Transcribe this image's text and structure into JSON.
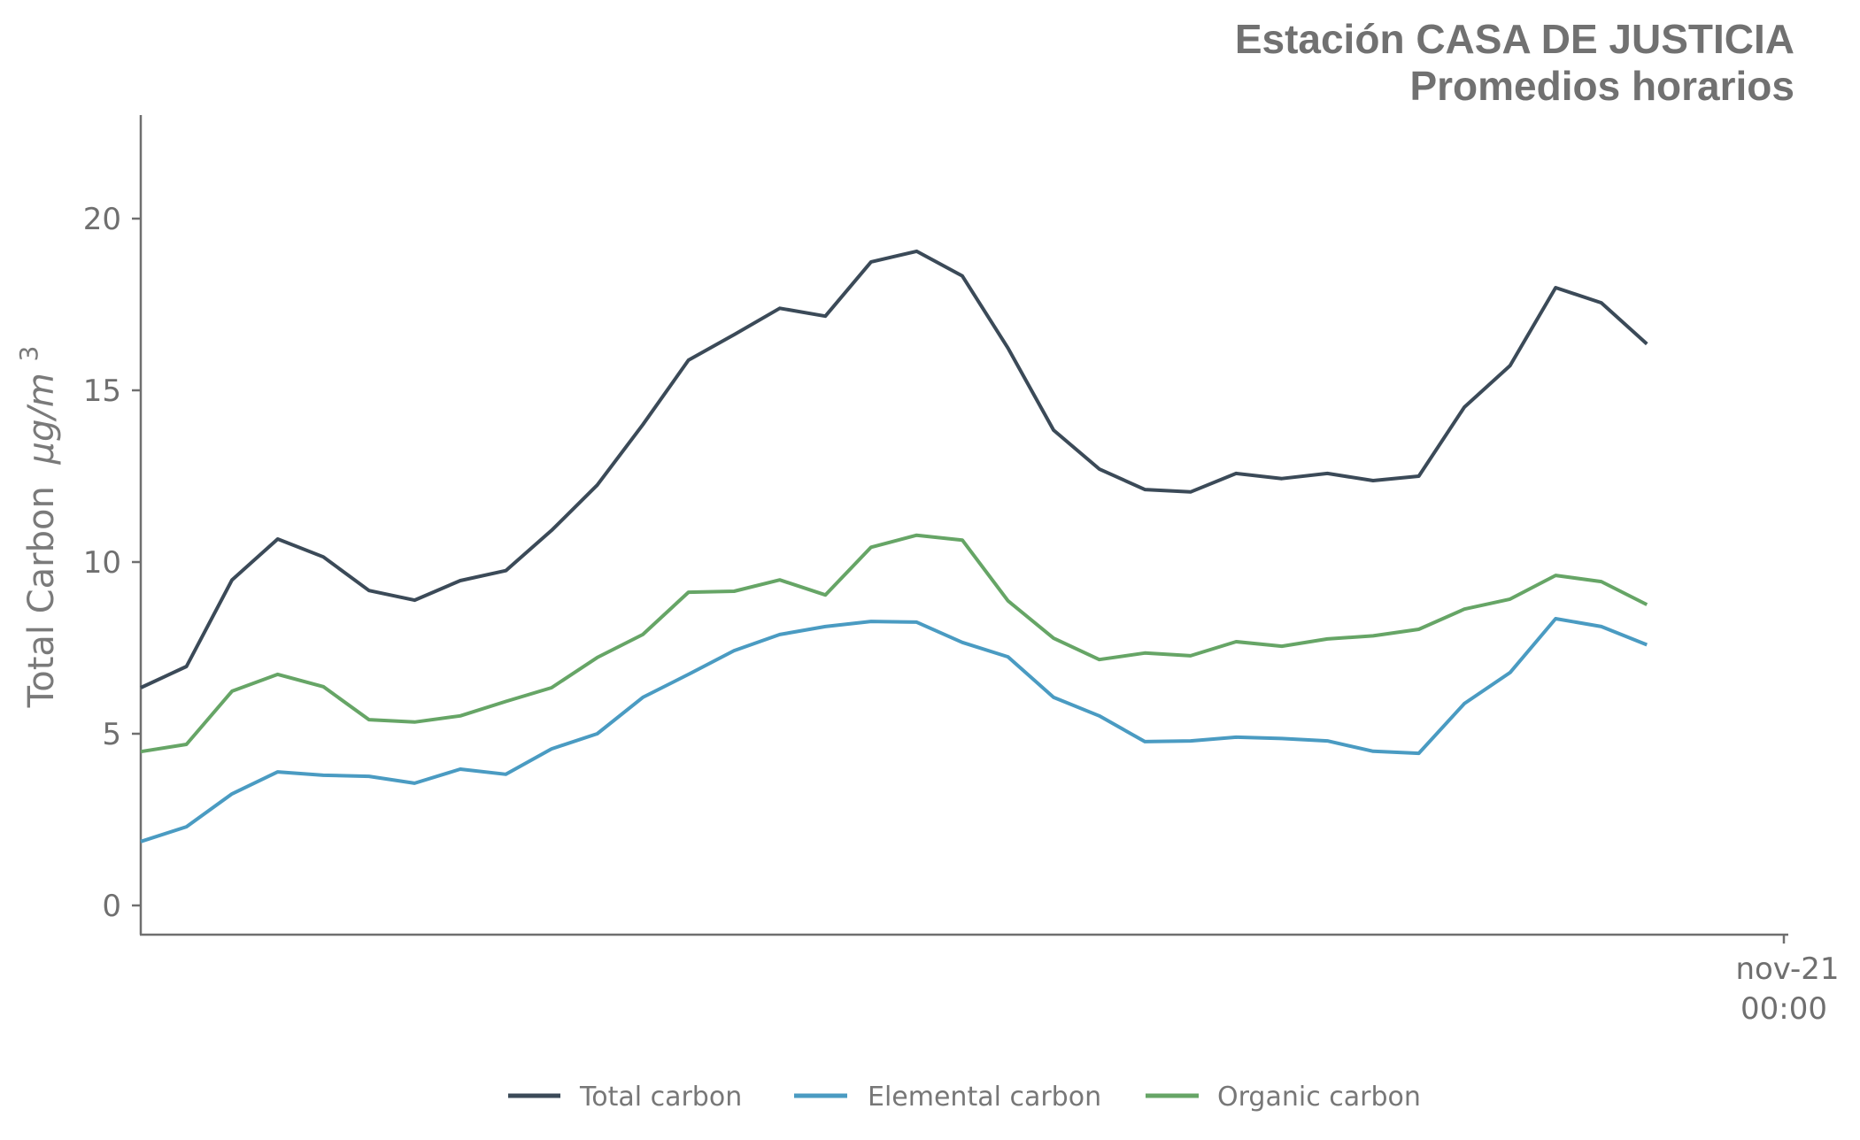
{
  "chart_data": {
    "type": "line",
    "title": "Estación CASA DE JUSTICIA",
    "subtitle": "Promedios horarios",
    "xlabel": "",
    "ylabel": "Total Carbon",
    "ylabel_unit": "μg/m",
    "ylabel_unit_sup": "3",
    "x_unit": "hours (hourly averages, 36 h before the nov-21 00:00 tick = hour 0)",
    "x": [
      0,
      1,
      2,
      3,
      4,
      5,
      6,
      7,
      8,
      9,
      10,
      11,
      12,
      13,
      14,
      15,
      16,
      17,
      18,
      19,
      20,
      21,
      22,
      23,
      24,
      25,
      26,
      27,
      28,
      29,
      30,
      31,
      32,
      33
    ],
    "xlim": [
      0,
      36
    ],
    "ylim": [
      -0.8,
      23
    ],
    "yticks": [
      0,
      5,
      10,
      15,
      20
    ],
    "ytick_labels": [
      "0",
      "5",
      "10",
      "15",
      "20"
    ],
    "xticks": [
      36
    ],
    "xtick_labels": [
      [
        "nov-21",
        "00:00"
      ]
    ],
    "grid": false,
    "legend_position": "bottom-center",
    "series": [
      {
        "name": "Total carbon",
        "color": "#3b4a58",
        "values": [
          6.34,
          6.96,
          9.48,
          10.67,
          10.15,
          9.17,
          8.89,
          9.46,
          9.75,
          10.92,
          12.24,
          14.0,
          15.88,
          16.62,
          17.39,
          17.16,
          18.74,
          19.05,
          18.33,
          16.23,
          13.84,
          12.71,
          12.11,
          12.04,
          12.58,
          12.43,
          12.58,
          12.37,
          12.5,
          14.51,
          15.72,
          17.99,
          17.55,
          16.35
        ]
      },
      {
        "name": "Elemental carbon",
        "color": "#4a9bc2",
        "values": [
          1.86,
          2.29,
          3.25,
          3.89,
          3.79,
          3.76,
          3.56,
          3.97,
          3.82,
          4.56,
          5.0,
          6.06,
          6.73,
          7.42,
          7.89,
          8.12,
          8.27,
          8.25,
          7.66,
          7.24,
          6.06,
          5.52,
          4.77,
          4.79,
          4.9,
          4.86,
          4.79,
          4.49,
          4.43,
          5.88,
          6.78,
          8.35,
          8.12,
          7.59
        ]
      },
      {
        "name": "Organic carbon",
        "color": "#66a566",
        "values": [
          4.48,
          4.69,
          6.24,
          6.73,
          6.37,
          5.41,
          5.34,
          5.52,
          5.94,
          6.34,
          7.22,
          7.89,
          9.12,
          9.15,
          9.48,
          9.04,
          10.43,
          10.78,
          10.64,
          8.87,
          7.78,
          7.16,
          7.35,
          7.27,
          7.68,
          7.55,
          7.76,
          7.85,
          8.04,
          8.63,
          8.92,
          9.61,
          9.43,
          8.76
        ]
      }
    ]
  }
}
